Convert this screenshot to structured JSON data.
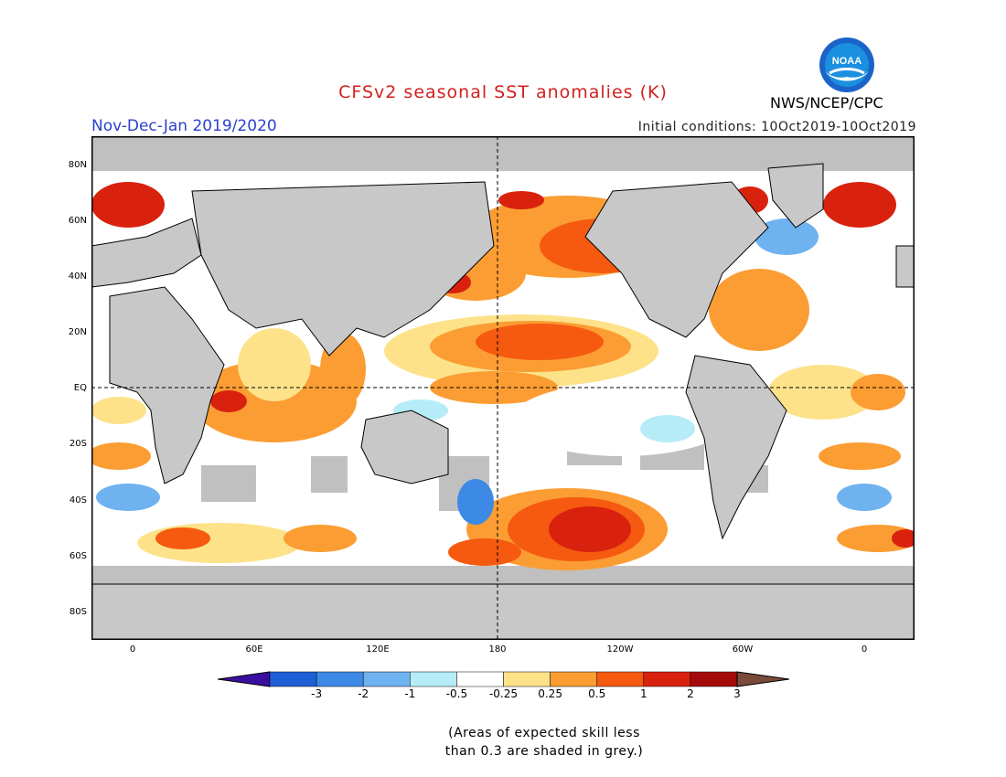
{
  "header": {
    "title": "CFSv2 seasonal SST anomalies (K)",
    "agency": "NWS/NCEP/CPC",
    "logo_text": "NOAA",
    "period": "Nov-Dec-Jan 2019/2020",
    "initial_conditions": "Initial conditions: 10Oct2019-10Oct2019"
  },
  "colors": {
    "title": "#d42020",
    "period": "#2a3fd0",
    "land_grey": "#c8c8c8",
    "ocean_white": "#ffffff",
    "skill_mask": "#c0c0c0"
  },
  "map": {
    "lat_labels": [
      "80N",
      "60N",
      "40N",
      "20N",
      "EQ",
      "20S",
      "40S",
      "60S",
      "80S"
    ],
    "lon_labels": [
      "0",
      "60E",
      "120E",
      "180",
      "120W",
      "60W",
      "0"
    ]
  },
  "colorbar": {
    "labels": [
      "-3",
      "-2",
      "-1",
      "-0.5",
      "-0.25",
      "0.25",
      "0.5",
      "1",
      "2",
      "3"
    ],
    "bins": [
      "#3a0fa0",
      "#1f5fd6",
      "#3d8ae6",
      "#6fb2f0",
      "#b6ecf7",
      "#ffffff",
      "#fde28a",
      "#fb9d33",
      "#f55a10",
      "#d9220e",
      "#a50a0a",
      "#7a4a3a"
    ]
  },
  "note": {
    "line1": "(Areas of expected skill less",
    "line2": "than 0.3 are shaded in grey.)"
  }
}
